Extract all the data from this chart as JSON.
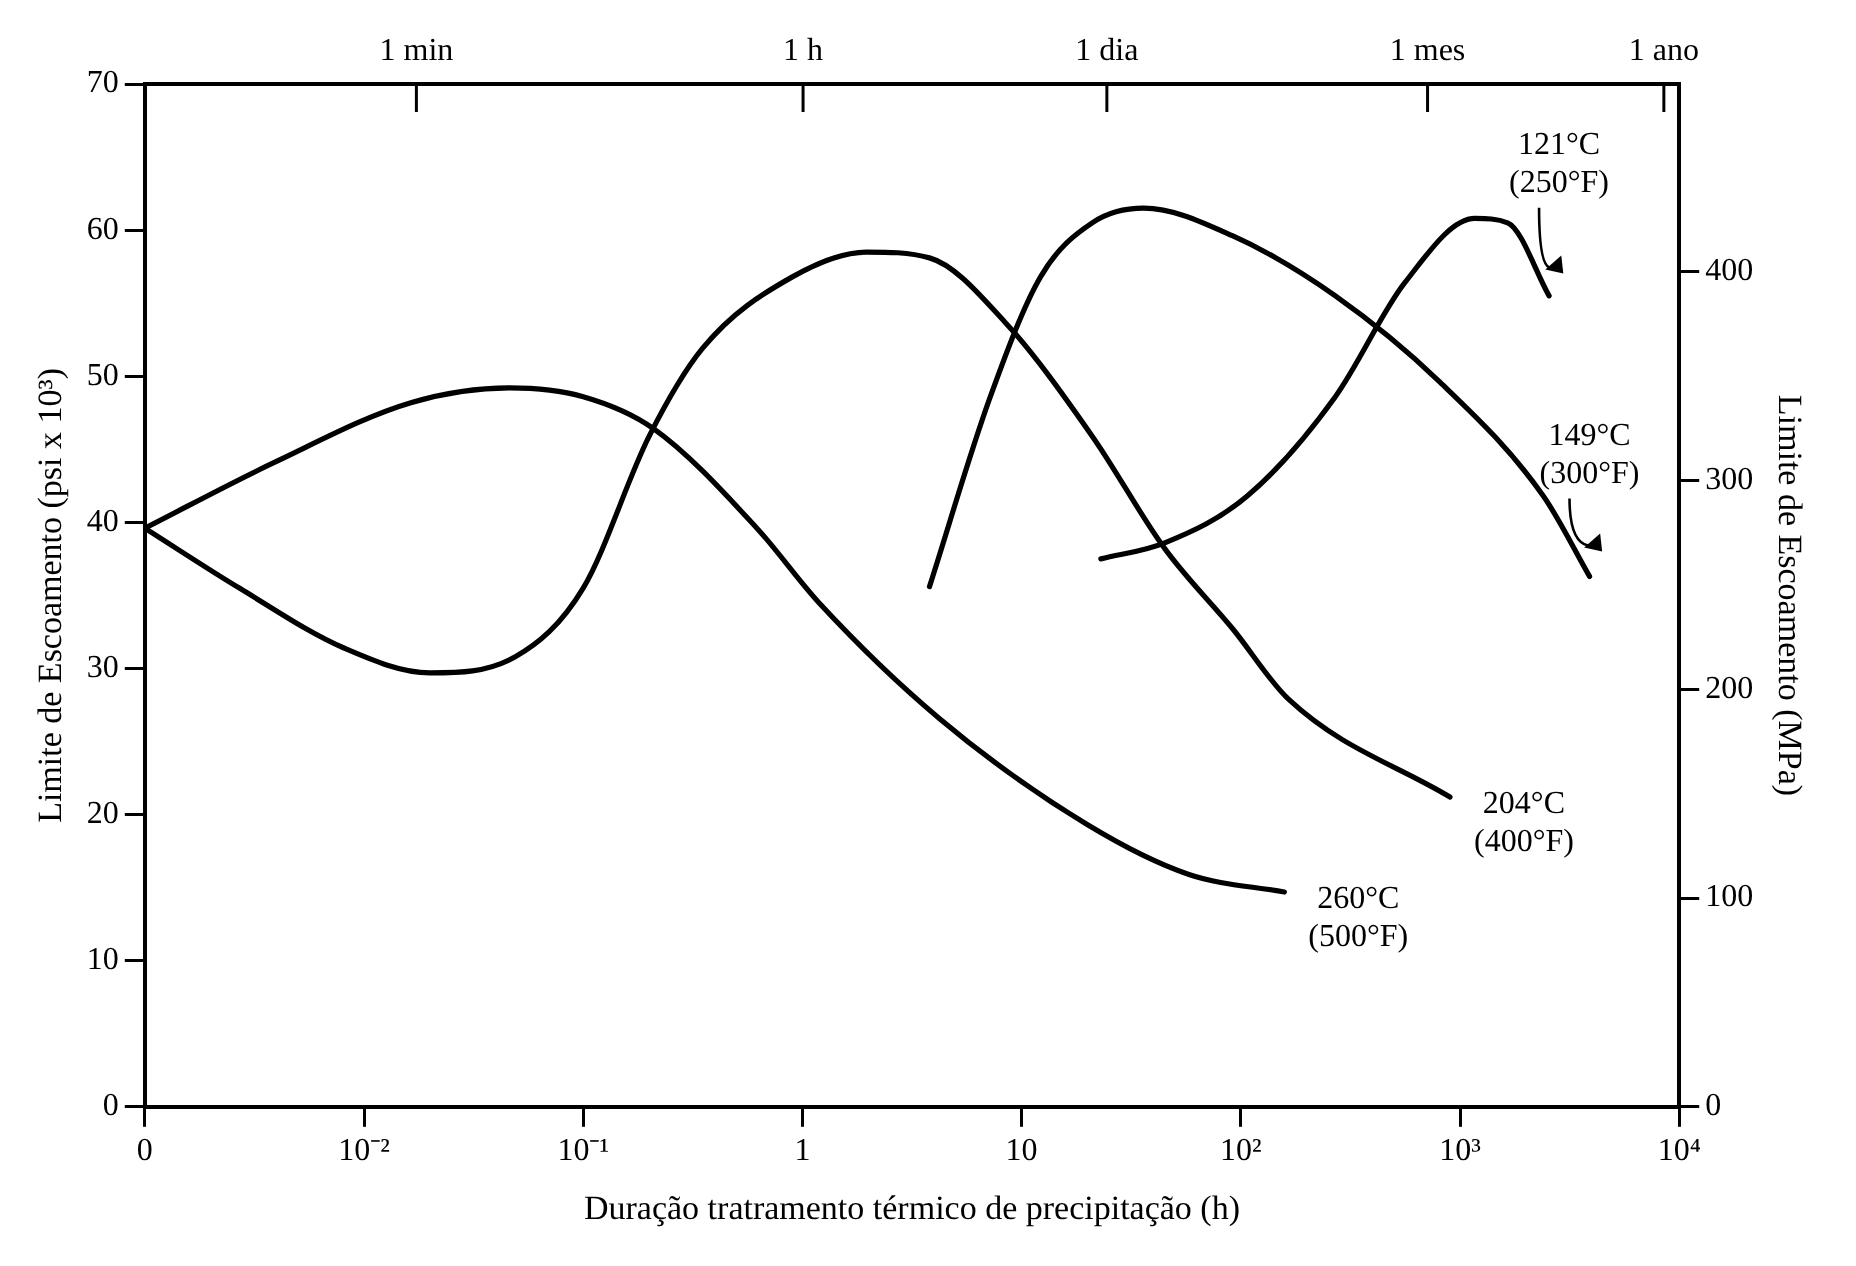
{
  "chart_data": {
    "type": "line",
    "xlabel": "Duração tratramento térmico de precipitação (h)",
    "ylabel": "Limite de Escoamento (psi x 10³)",
    "y2label": "Limite de Escoamento (MPa)",
    "log": "x",
    "xlim": [
      0.001,
      10000
    ],
    "xticks": [
      {
        "value": 0.001,
        "label": "0"
      },
      {
        "value": 0.01,
        "label": "10⁻²"
      },
      {
        "value": 0.1,
        "label": "10⁻¹"
      },
      1,
      10,
      {
        "value": 100,
        "label": "10²"
      },
      {
        "value": 1000,
        "label": "10³"
      },
      {
        "value": 10000,
        "label": "10⁴"
      }
    ],
    "annotations": [
      "1 min",
      "1 h",
      "1 dia",
      "1 mes",
      "1 ano"
    ],
    "ylim": [
      0,
      70
    ],
    "yticks": [
      0,
      10,
      20,
      30,
      40,
      50,
      60,
      70
    ],
    "y2lim": [
      0,
      490
    ],
    "y2ticks": [
      0,
      100,
      200,
      300,
      400
    ],
    "legend": false,
    "marker": "none",
    "line_style": "solid",
    "series": [
      {
        "name": "260°C (500°F)",
        "color": "#000000",
        "x": [
          0.001,
          0.0039,
          0.0165,
          0.046,
          0.1,
          0.21,
          0.62,
          1.19,
          4.2,
          20,
          58,
          158
        ],
        "values": [
          39.6,
          44.1,
          48.2,
          49.2,
          48.6,
          46.4,
          39.6,
          34.5,
          26.6,
          19.3,
          15.9,
          14.7
        ]
      },
      {
        "name": "204°C (400°F)",
        "color": "#000000",
        "x": [
          0.001,
          0.0027,
          0.0081,
          0.02,
          0.049,
          0.1,
          0.2,
          0.35,
          0.9,
          1.96,
          3.8,
          8.4,
          21,
          45,
          92,
          165,
          900
        ],
        "values": [
          39.6,
          35.5,
          31.4,
          29.7,
          30.8,
          35.5,
          45.9,
          51.9,
          56.8,
          58.5,
          58.1,
          53.7,
          45.9,
          38.2,
          32.7,
          27.9,
          21.2
        ]
      },
      {
        "name": "149°C (300°F)",
        "color": "#000000",
        "x": [
          3.8,
          7.2,
          12.2,
          21,
          36,
          92,
          270,
          810,
          2400,
          3900
        ],
        "values": [
          35.6,
          48.6,
          56.8,
          60.5,
          61.5,
          59.6,
          55.5,
          49.6,
          41.8,
          36.3
        ]
      },
      {
        "name": "121°C (250°F)",
        "color": "#000000",
        "x": [
          23,
          45,
          107,
          270,
          560,
          1170,
          1650,
          2550
        ],
        "values": [
          37.5,
          38.6,
          41.8,
          48.6,
          56.4,
          60.8,
          60.5,
          55.5
        ]
      }
    ]
  }
}
